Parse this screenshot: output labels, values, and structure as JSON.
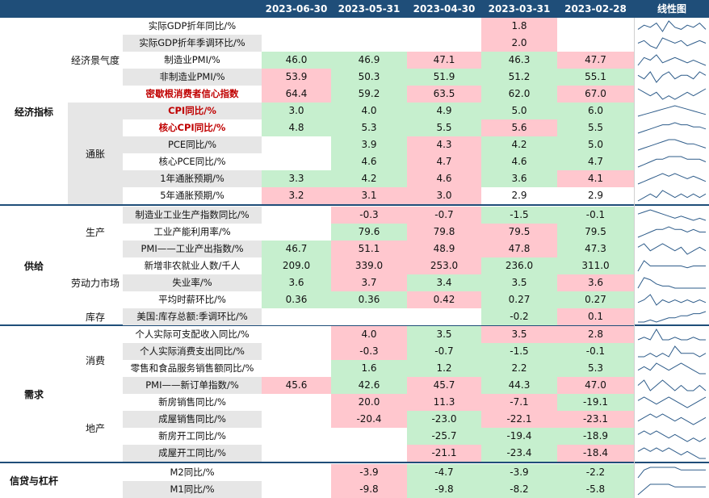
{
  "header": {
    "dates": [
      "2023-06-30",
      "2023-05-31",
      "2023-04-30",
      "2023-03-31",
      "2023-02-28"
    ],
    "sparkline_title": "线性图"
  },
  "groups": [
    {
      "name": "经济指标",
      "subgroups": [
        {
          "name": "经济景气度"
        },
        {
          "name": "通胀"
        }
      ]
    },
    {
      "name": "供给",
      "subgroups": [
        {
          "name": "生产"
        },
        {
          "name": "劳动力市场"
        },
        {
          "name": "库存"
        }
      ]
    },
    {
      "name": "需求",
      "subgroups": [
        {
          "name": "消费"
        },
        {
          "name": "地产"
        }
      ]
    },
    {
      "name": "信贷与杠杆",
      "subgroups": []
    }
  ],
  "rows": [
    {
      "label": "实际GDP折年同比/%",
      "highlight": false,
      "values": [
        "",
        "",
        "",
        "1.8",
        ""
      ],
      "states": [
        "w",
        "w",
        "w",
        "r",
        "w"
      ],
      "spark": [
        3,
        5,
        4,
        6,
        2,
        7,
        4,
        3,
        5,
        4,
        6,
        3
      ]
    },
    {
      "label": "实际GDP折年季调环比/%",
      "highlight": false,
      "values": [
        "",
        "",
        "",
        "2.0",
        ""
      ],
      "states": [
        "w",
        "w",
        "w",
        "r",
        "w"
      ],
      "spark": [
        4,
        5,
        3,
        2,
        6,
        5,
        4,
        5,
        3,
        4,
        5,
        4
      ]
    },
    {
      "label": "制造业PMI/%",
      "highlight": false,
      "values": [
        "46.0",
        "46.9",
        "47.1",
        "46.3",
        "47.7"
      ],
      "states": [
        "g",
        "g",
        "r",
        "g",
        "r"
      ],
      "spark": [
        3,
        6,
        5,
        7,
        4,
        5,
        6,
        5,
        4,
        5,
        4,
        3
      ]
    },
    {
      "label": "非制造业PMI/%",
      "highlight": false,
      "values": [
        "53.9",
        "50.3",
        "51.9",
        "51.2",
        "55.1"
      ],
      "states": [
        "r",
        "g",
        "g",
        "g",
        "g"
      ],
      "spark": [
        5,
        4,
        6,
        3,
        5,
        6,
        4,
        5,
        5,
        4,
        6,
        5
      ]
    },
    {
      "label": "密歇根消费者信心指数",
      "highlight": true,
      "values": [
        "64.4",
        "59.2",
        "63.5",
        "62.0",
        "67.0"
      ],
      "states": [
        "r",
        "g",
        "r",
        "g",
        "r"
      ],
      "spark": [
        6,
        5,
        4,
        5,
        3,
        4,
        3,
        4,
        5,
        4,
        5,
        6
      ]
    },
    {
      "label": "CPI同比/%",
      "highlight": true,
      "values": [
        "3.0",
        "4.0",
        "4.9",
        "5.0",
        "6.0"
      ],
      "states": [
        "g",
        "g",
        "g",
        "g",
        "g"
      ],
      "spark": [
        2,
        3,
        4,
        5,
        6,
        7,
        8,
        7,
        6,
        5,
        4,
        3
      ]
    },
    {
      "label": "核心CPI同比/%",
      "highlight": true,
      "values": [
        "4.8",
        "5.3",
        "5.5",
        "5.6",
        "5.5"
      ],
      "states": [
        "g",
        "g",
        "g",
        "r",
        "g"
      ],
      "spark": [
        2,
        3,
        4,
        5,
        6,
        6,
        7,
        6,
        6,
        5,
        5,
        4
      ]
    },
    {
      "label": "PCE同比/%",
      "highlight": false,
      "values": [
        "",
        "3.9",
        "4.3",
        "4.2",
        "5.0"
      ],
      "states": [
        "w",
        "g",
        "r",
        "g",
        "g"
      ],
      "spark": [
        2,
        3,
        4,
        5,
        6,
        7,
        7,
        6,
        5,
        5,
        4,
        3
      ]
    },
    {
      "label": "核心PCE同比/%",
      "highlight": false,
      "values": [
        "",
        "4.6",
        "4.7",
        "4.6",
        "4.7"
      ],
      "states": [
        "w",
        "g",
        "r",
        "g",
        "g"
      ],
      "spark": [
        2,
        3,
        4,
        5,
        5,
        6,
        6,
        6,
        5,
        5,
        5,
        4
      ]
    },
    {
      "label": "1年通胀预期/%",
      "highlight": false,
      "values": [
        "3.3",
        "4.2",
        "4.6",
        "3.6",
        "4.1"
      ],
      "states": [
        "g",
        "g",
        "r",
        "g",
        "r"
      ],
      "spark": [
        2,
        3,
        4,
        5,
        6,
        5,
        6,
        5,
        4,
        5,
        4,
        3
      ]
    },
    {
      "label": "5年通胀预期/%",
      "highlight": false,
      "values": [
        "3.2",
        "3.1",
        "3.0",
        "2.9",
        "2.9"
      ],
      "states": [
        "r",
        "r",
        "r",
        "w",
        "w"
      ],
      "spark": [
        3,
        4,
        5,
        4,
        6,
        5,
        4,
        5,
        4,
        5,
        4,
        5
      ]
    },
    {
      "label": "制造业工业生产指数同比/%",
      "highlight": false,
      "values": [
        "",
        "-0.3",
        "-0.7",
        "-1.5",
        "-0.1"
      ],
      "states": [
        "w",
        "r",
        "r",
        "g",
        "g"
      ],
      "spark": [
        5,
        6,
        7,
        6,
        5,
        4,
        3,
        4,
        3,
        2,
        3,
        2
      ]
    },
    {
      "label": "工业产能利用率/%",
      "highlight": false,
      "values": [
        "",
        "79.6",
        "79.8",
        "79.5",
        "79.5"
      ],
      "states": [
        "w",
        "g",
        "r",
        "r",
        "g"
      ],
      "spark": [
        3,
        4,
        5,
        6,
        6,
        7,
        6,
        6,
        5,
        6,
        5,
        5
      ]
    },
    {
      "label": "PMI——工业产出指数/%",
      "highlight": false,
      "values": [
        "46.7",
        "51.1",
        "48.9",
        "47.8",
        "47.3"
      ],
      "states": [
        "g",
        "r",
        "r",
        "r",
        "g"
      ],
      "spark": [
        5,
        6,
        4,
        5,
        6,
        5,
        4,
        5,
        3,
        4,
        5,
        4
      ]
    },
    {
      "label": "新增非农就业人数/千人",
      "highlight": false,
      "values": [
        "209.0",
        "339.0",
        "253.0",
        "236.0",
        "311.0"
      ],
      "states": [
        "g",
        "r",
        "r",
        "g",
        "g"
      ],
      "spark": [
        2,
        8,
        5,
        5,
        5,
        5,
        5,
        5,
        4,
        5,
        5,
        5
      ]
    },
    {
      "label": "失业率/%",
      "highlight": false,
      "values": [
        "3.6",
        "3.7",
        "3.4",
        "3.5",
        "3.6"
      ],
      "states": [
        "g",
        "r",
        "g",
        "g",
        "r"
      ],
      "spark": [
        3,
        8,
        7,
        5,
        4,
        4,
        3,
        3,
        3,
        3,
        3,
        3
      ]
    },
    {
      "label": "平均时薪环比/%",
      "highlight": false,
      "values": [
        "0.36",
        "0.36",
        "0.42",
        "0.27",
        "0.27"
      ],
      "states": [
        "g",
        "g",
        "r",
        "g",
        "g"
      ],
      "spark": [
        4,
        5,
        7,
        3,
        5,
        4,
        5,
        4,
        5,
        4,
        5,
        4
      ]
    },
    {
      "label": "美国:库存总额:季调环比/%",
      "highlight": false,
      "values": [
        "",
        "",
        "",
        "-0.2",
        "0.1"
      ],
      "states": [
        "w",
        "w",
        "w",
        "g",
        "r"
      ],
      "spark": [
        3,
        3,
        4,
        3,
        4,
        5,
        5,
        6,
        6,
        7,
        7,
        8
      ]
    },
    {
      "label": "个人实际可支配收入同比/%",
      "highlight": false,
      "values": [
        "",
        "4.0",
        "3.5",
        "3.5",
        "2.8"
      ],
      "states": [
        "w",
        "r",
        "g",
        "r",
        "r"
      ],
      "spark": [
        4,
        5,
        4,
        8,
        4,
        4,
        5,
        4,
        4,
        5,
        4,
        4
      ]
    },
    {
      "label": "个人实际消费支出同比/%",
      "highlight": false,
      "values": [
        "",
        "-0.3",
        "-0.7",
        "-1.5",
        "-0.1"
      ],
      "states": [
        "w",
        "r",
        "g",
        "g",
        "g"
      ],
      "spark": [
        4,
        4,
        5,
        4,
        5,
        4,
        7,
        5,
        5,
        5,
        4,
        5
      ]
    },
    {
      "label": "零售和食品服务销售额同比/%",
      "highlight": false,
      "values": [
        "",
        "1.6",
        "1.2",
        "2.2",
        "5.3"
      ],
      "states": [
        "w",
        "g",
        "g",
        "g",
        "g"
      ],
      "spark": [
        4,
        5,
        4,
        6,
        5,
        4,
        5,
        6,
        5,
        4,
        3,
        3
      ]
    },
    {
      "label": "PMI——新订单指数/%",
      "highlight": false,
      "values": [
        "45.6",
        "42.6",
        "45.7",
        "44.3",
        "47.0"
      ],
      "states": [
        "r",
        "g",
        "r",
        "g",
        "r"
      ],
      "spark": [
        5,
        6,
        4,
        5,
        6,
        5,
        4,
        5,
        4,
        4,
        5,
        4
      ]
    },
    {
      "label": "新房销售同比/%",
      "highlight": false,
      "values": [
        "",
        "20.0",
        "11.3",
        "-7.1",
        "-19.1"
      ],
      "states": [
        "w",
        "r",
        "r",
        "r",
        "g"
      ],
      "spark": [
        5,
        6,
        5,
        4,
        5,
        6,
        5,
        4,
        3,
        4,
        5,
        6
      ]
    },
    {
      "label": "成屋销售同比/%",
      "highlight": false,
      "values": [
        "",
        "-20.4",
        "-23.0",
        "-22.1",
        "-23.1"
      ],
      "states": [
        "w",
        "r",
        "g",
        "r",
        "r"
      ],
      "spark": [
        4,
        5,
        6,
        5,
        6,
        5,
        4,
        5,
        4,
        3,
        4,
        5
      ]
    },
    {
      "label": "新房开工同比/%",
      "highlight": false,
      "values": [
        "",
        "",
        "-25.7",
        "-19.4",
        "-18.9"
      ],
      "states": [
        "w",
        "w",
        "g",
        "g",
        "g"
      ],
      "spark": [
        5,
        6,
        5,
        6,
        5,
        4,
        5,
        4,
        3,
        4,
        3,
        4
      ]
    },
    {
      "label": "成屋开工同比/%",
      "highlight": false,
      "values": [
        "",
        "",
        "-21.1",
        "-23.4",
        "-18.4"
      ],
      "states": [
        "w",
        "w",
        "r",
        "g",
        "r"
      ],
      "spark": [
        5,
        6,
        5,
        6,
        5,
        6,
        5,
        4,
        5,
        4,
        3,
        3
      ]
    },
    {
      "label": "M2同比/%",
      "highlight": false,
      "values": [
        "",
        "-3.9",
        "-4.7",
        "-3.9",
        "-2.2"
      ],
      "states": [
        "w",
        "r",
        "g",
        "g",
        "g"
      ],
      "spark": [
        3,
        6,
        7,
        7,
        7,
        7,
        7,
        6,
        6,
        6,
        6,
        6
      ]
    },
    {
      "label": "M1同比/%",
      "highlight": false,
      "values": [
        "",
        "-9.8",
        "-9.8",
        "-8.2",
        "-5.8"
      ],
      "states": [
        "w",
        "r",
        "g",
        "g",
        "g"
      ],
      "spark": [
        3,
        5,
        7,
        7,
        7,
        7,
        6,
        6,
        6,
        6,
        6,
        6
      ]
    }
  ]
}
